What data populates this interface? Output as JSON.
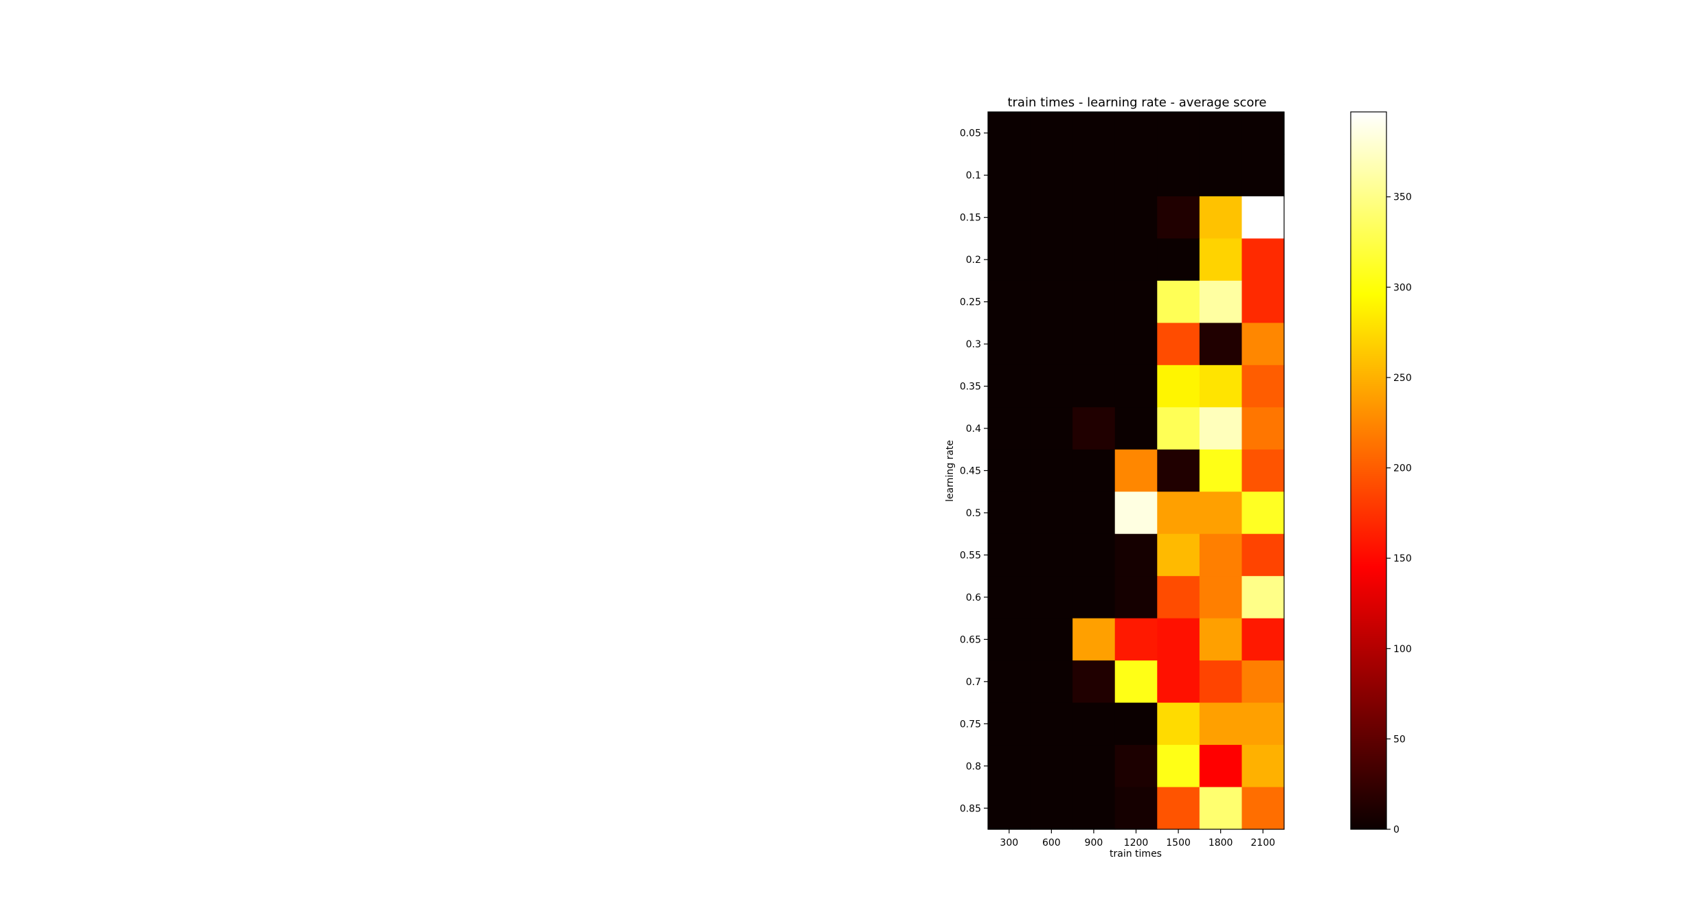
{
  "chart_data": {
    "type": "heatmap",
    "title": "train times - learning rate - average score",
    "xlabel": "train times",
    "ylabel": "learning rate",
    "x": [
      "300",
      "600",
      "900",
      "1200",
      "1500",
      "1800",
      "2100"
    ],
    "y": [
      "0.05",
      "0.1",
      "0.15",
      "0.2",
      "0.25",
      "0.3",
      "0.35",
      "0.4",
      "0.45",
      "0.5",
      "0.55",
      "0.6",
      "0.65",
      "0.7",
      "0.75",
      "0.8",
      "0.85"
    ],
    "values": [
      [
        0,
        0,
        0,
        0,
        0,
        0,
        0
      ],
      [
        0,
        0,
        0,
        0,
        0,
        0,
        0
      ],
      [
        0,
        0,
        0,
        0,
        12,
        260,
        397
      ],
      [
        0,
        0,
        0,
        0,
        0,
        270,
        170
      ],
      [
        0,
        0,
        0,
        0,
        330,
        360,
        170
      ],
      [
        0,
        0,
        0,
        0,
        190,
        12,
        225
      ],
      [
        0,
        0,
        0,
        0,
        290,
        280,
        200
      ],
      [
        0,
        0,
        12,
        0,
        330,
        370,
        215
      ],
      [
        0,
        0,
        0,
        225,
        12,
        305,
        195
      ],
      [
        0,
        0,
        0,
        385,
        240,
        240,
        310
      ],
      [
        0,
        0,
        0,
        6,
        255,
        220,
        185
      ],
      [
        0,
        0,
        0,
        6,
        190,
        220,
        350
      ],
      [
        0,
        0,
        240,
        160,
        155,
        240,
        160
      ],
      [
        0,
        0,
        12,
        305,
        155,
        185,
        220
      ],
      [
        0,
        0,
        0,
        0,
        275,
        240,
        240
      ],
      [
        0,
        0,
        0,
        10,
        305,
        145,
        250
      ],
      [
        0,
        0,
        0,
        6,
        195,
        340,
        210
      ]
    ],
    "colormap": "hot",
    "vmin": 0,
    "vmax": 397,
    "colorbar_ticks": [
      "0",
      "50",
      "100",
      "150",
      "200",
      "250",
      "300",
      "350"
    ],
    "grid": false,
    "colorbar_position": "right"
  }
}
